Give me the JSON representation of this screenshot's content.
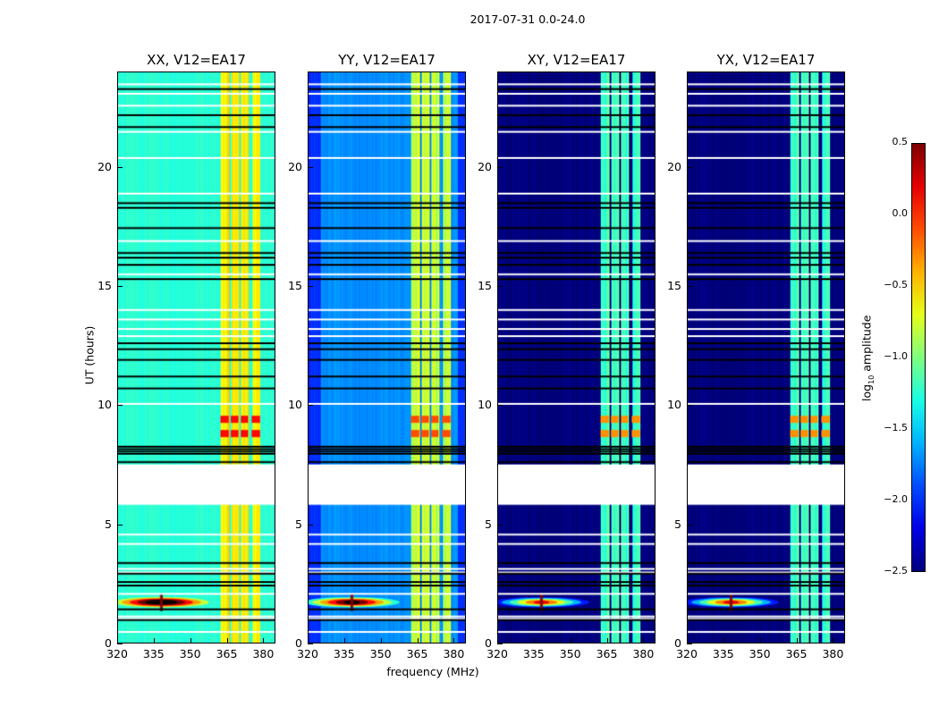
{
  "chart_data": {
    "type": "heatmap",
    "title": "2017-07-31 0.0-24.0",
    "xlabel": "frequency (MHz)",
    "ylabel": "UT (hours)",
    "xlim": [
      320,
      385
    ],
    "ylim": [
      0,
      24
    ],
    "xticks": [
      320,
      335,
      350,
      365,
      380
    ],
    "yticks": [
      0,
      5,
      10,
      15,
      20
    ],
    "colormap": "jet",
    "colorbar": {
      "label": "log10 amplitude",
      "label_main": "log",
      "label_sub": "10",
      "label_tail": " amplitude",
      "range": [
        -2.5,
        0.5
      ],
      "ticks": [
        "0.5",
        "0.0",
        "−0.5",
        "−1.0",
        "−1.5",
        "−2.0",
        "−2.5"
      ],
      "tick_values": [
        0.5,
        0,
        -0.5,
        -1,
        -1.5,
        -2,
        -2.5
      ]
    },
    "panels": [
      {
        "title": "XX, V12=EA17",
        "baseline": -1.25,
        "band_level": -0.6,
        "hot_level": 0.1
      },
      {
        "title": "YY, V12=EA17",
        "baseline": -1.7,
        "band_level": -0.8,
        "hot_level": -0.1
      },
      {
        "title": "XY, V12=EA17",
        "baseline": -2.5,
        "band_level": -1.2,
        "hot_level": -0.3
      },
      {
        "title": "YX, V12=EA17",
        "baseline": -2.5,
        "band_level": -1.2,
        "hot_level": -0.3
      }
    ],
    "bright_channels_mhz": [
      [
        362.5,
        366
      ],
      [
        366.8,
        370
      ],
      [
        371,
        374
      ],
      [
        375.5,
        379
      ]
    ],
    "data_gap_hours": [
      5.8,
      7.5
    ],
    "unflagged_white_rows_hours": [
      0.45,
      1.0,
      1.1,
      2.05,
      2.95,
      3.1,
      4.15,
      4.55,
      10.05,
      12.9,
      13.2,
      13.6,
      14.0,
      15.5,
      16.9,
      18.9,
      20.4,
      21.5,
      22.6,
      23.1,
      23.5
    ],
    "flagged_black_rows_hours": [
      0.95,
      1.4,
      2.4,
      2.55,
      2.9,
      3.35,
      7.6,
      7.95,
      8.05,
      8.15,
      8.25,
      10.7,
      11.2,
      11.9,
      12.35,
      12.6,
      15.3,
      15.9,
      16.2,
      16.4,
      17.45,
      18.3,
      18.5,
      21.7,
      22.2,
      23.3
    ],
    "rfi_spike": {
      "freq_mhz": 338,
      "time_hours": 1.7
    },
    "hot_rows_hours": [
      8.8,
      9.4
    ]
  }
}
